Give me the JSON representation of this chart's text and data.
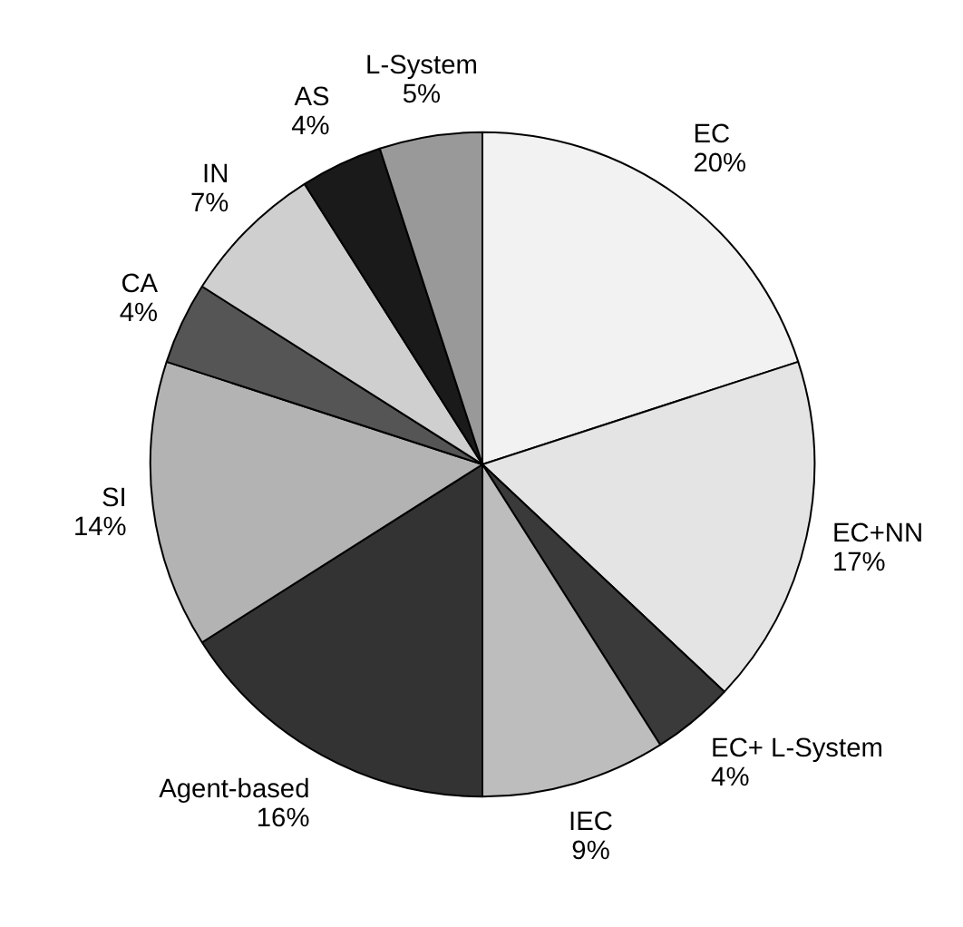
{
  "chart_data": {
    "type": "pie",
    "categories": [
      "EC",
      "EC+NN",
      "EC+ L-System",
      "IEC",
      "Agent-based",
      "SI",
      "CA",
      "IN",
      "AS",
      "L-System"
    ],
    "values": [
      20,
      17,
      4,
      9,
      16,
      14,
      4,
      7,
      4,
      5
    ],
    "value_labels": [
      "20%",
      "17%",
      "4%",
      "9%",
      "16%",
      "14%",
      "4%",
      "7%",
      "4%",
      "5%"
    ],
    "colors": [
      "#f2f2f2",
      "#e4e4e4",
      "#3a3a3a",
      "#bdbdbd",
      "#333333",
      "#b3b3b3",
      "#555555",
      "#cfcfcf",
      "#1a1a1a",
      "#999999"
    ]
  }
}
